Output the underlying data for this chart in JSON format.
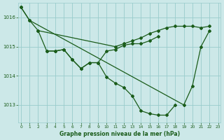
{
  "title": "Graphe pression niveau de la mer (hPa)",
  "bg_color": "#cce8e8",
  "plot_bg_color": "#cce8e8",
  "line_color": "#1a5c1a",
  "grid_color": "#99cccc",
  "tick_color": "#1a5c1a",
  "label_color": "#1a5c1a",
  "ylim": [
    1012.4,
    1016.5
  ],
  "yticks": [
    1013,
    1014,
    1015,
    1016
  ],
  "xlim": [
    -0.3,
    23.3
  ],
  "xticks": [
    0,
    1,
    2,
    3,
    4,
    5,
    6,
    7,
    8,
    9,
    10,
    11,
    12,
    13,
    14,
    15,
    16,
    17,
    18,
    19,
    20,
    21,
    22,
    23
  ],
  "seriesA": [
    1016.35,
    1015.9,
    null,
    null,
    null,
    null,
    null,
    null,
    null,
    null,
    null,
    null,
    null,
    null,
    null,
    null,
    null,
    null,
    null,
    1013.0,
    1013.65,
    1015.0,
    1015.55,
    null
  ],
  "seriesB": [
    1016.35,
    1015.9,
    1015.55,
    null,
    null,
    null,
    null,
    null,
    null,
    null,
    null,
    1015.0,
    1015.1,
    1015.2,
    1015.3,
    1015.45,
    1015.55,
    1015.65,
    1015.7,
    1015.7,
    1015.7,
    1015.65,
    1015.7,
    null
  ],
  "seriesC": [
    null,
    null,
    1015.55,
    1014.85,
    1014.85,
    1014.9,
    1014.55,
    1014.25,
    1014.45,
    1014.45,
    1013.95,
    1013.75,
    1013.6,
    1013.3,
    1012.8,
    1012.7,
    1012.65,
    1012.65,
    1013.0,
    null,
    null,
    null,
    null,
    null
  ],
  "seriesD": [
    null,
    null,
    null,
    1014.85,
    1014.85,
    1014.9,
    1014.55,
    1014.25,
    1014.45,
    1014.45,
    1014.85,
    1014.9,
    1015.05,
    1015.1,
    1015.1,
    1015.2,
    1015.35,
    null,
    null,
    null,
    null,
    null,
    null,
    null
  ]
}
